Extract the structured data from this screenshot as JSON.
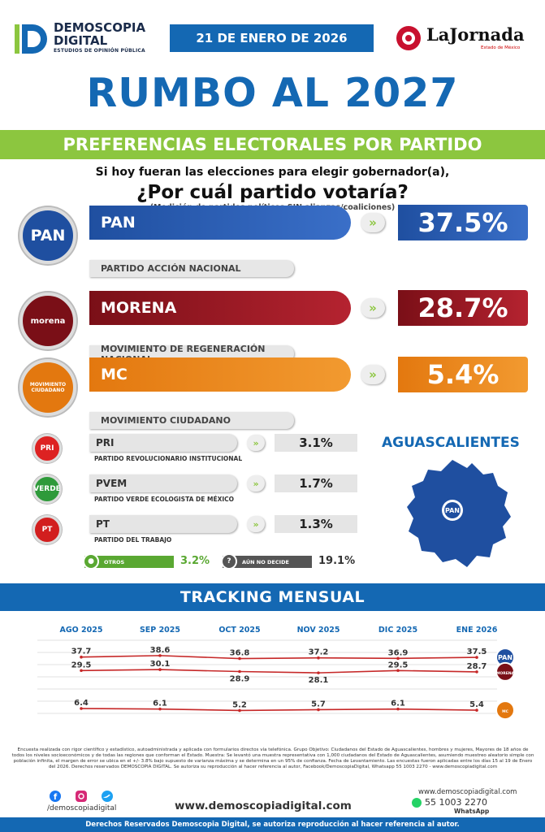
{
  "header": {
    "logo_line1": "DEMOSCOPIA",
    "logo_line2": "DIGITAL",
    "logo_sub": "ESTUDIOS DE OPINIÓN PÚBLICA",
    "date": "21 DE ENERO DE 2026",
    "partner": "LaJornada",
    "partner_sub": "Estado de México"
  },
  "title": "RUMBO AL 2027",
  "subtitle": "PREFERENCIAS ELECTORALES POR PARTIDO",
  "question": {
    "line1": "Si hoy fueran las elecciones para elegir gobernador(a),",
    "line2": "¿Por cuál partido votaría?",
    "note": "(Medición de partidos políticos SIN alianzas/coaliciones)"
  },
  "main_parties": [
    {
      "code": "PAN",
      "name": "PARTIDO ACCIÓN NACIONAL",
      "pct": "37.5%",
      "logo_text": "PAN",
      "color": "#1f4fa0",
      "color2": "#3a6fc8"
    },
    {
      "code": "MORENA",
      "name": "MOVIMIENTO DE REGENERACIÓN NACIONAL",
      "pct": "28.7%",
      "logo_text": "morena",
      "color": "#7a0f17",
      "color2": "#b52330"
    },
    {
      "code": "MC",
      "name": "MOVIMIENTO CIUDADANO",
      "pct": "5.4%",
      "logo_text": "MOVIMIENTO CIUDADANO",
      "color": "#e3780f",
      "color2": "#f29a30"
    }
  ],
  "minor_parties": [
    {
      "code": "PRI",
      "name": "PARTIDO REVOLUCIONARIO INSTITUCIONAL",
      "pct": "3.1%",
      "logo_text": "PRI",
      "color": "#d22"
    },
    {
      "code": "PVEM",
      "name": "PARTIDO VERDE ECOLOGISTA DE MÉXICO",
      "pct": "1.7%",
      "logo_text": "VERDE",
      "color": "#2e9a3a"
    },
    {
      "code": "PT",
      "name": "PARTIDO DEL TRABAJO",
      "pct": "1.3%",
      "logo_text": "PT",
      "color": "#d21e1e"
    }
  ],
  "others": {
    "label": "OTROS",
    "value": "3.2%",
    "color": "#5aa832"
  },
  "undecided": {
    "label": "AÚN NO DECIDE",
    "value": "19.1%",
    "color": "#555"
  },
  "state": "AGUASCALIENTES",
  "state_badge": "PAN",
  "tracking_title": "TRACKING MENSUAL",
  "chart_data": {
    "type": "line",
    "title": "TRACKING MENSUAL",
    "categories": [
      "AGO 2025",
      "SEP 2025",
      "OCT 2025",
      "NOV 2025",
      "DIC 2025",
      "ENE 2026"
    ],
    "series": [
      {
        "name": "PAN",
        "values": [
          37.7,
          38.6,
          36.8,
          37.2,
          36.9,
          37.5
        ],
        "color": "#c62828"
      },
      {
        "name": "MORENA",
        "values": [
          29.5,
          30.1,
          28.9,
          28.1,
          29.5,
          28.7
        ],
        "color": "#c62828"
      },
      {
        "name": "MC",
        "values": [
          6.4,
          6.1,
          5.2,
          5.7,
          6.1,
          5.4
        ],
        "color": "#c62828"
      }
    ],
    "ylim": [
      0,
      42
    ],
    "grid": true,
    "legend": "right"
  },
  "footer": {
    "methodology": "Encuesta realizada con rigor científico y estadístico, autoadministrada y aplicada con formularios directos vía telefónica. Grupo Objetivo: Ciudadanos del Estado de Aguascalientes, hombres y mujeres, Mayores de 18 años de todos los niveles socioeconómicos y de todas las regiones que conforman el Estado. Muestra: Se levantó una muestra representativa con 1,000 ciudadanos del Estado de Aguascalientes, asumiendo muestreo aleatorio simple con población infinita, el margen de error se ubica en el +/- 3.8% bajo supuesto de varianza máxima y se determina en un 95% de confianza. Fecha de Levantamiento. Las encuestas fueron aplicadas entre los días 15 al 19 de Enero del 2026. Derechos reservados DEMOSCOPIA DIGITAL. Se autoriza su reproducción al hacer referencia al autor, Facebook/DemoscopiaDigital, Whatsapp 55 1003 2270 - www.demoscopiadigital.com",
    "handle": "/demoscopiadigital",
    "site": "www.demoscopiadigital.com",
    "site_small": "www.demoscopiadigital.com",
    "phone": "55 1003 2270",
    "whatsapp": "WhatsApp",
    "rights": "Derechos Reservados Demoscopia Digital, se autoriza reproducción al hacer referencia al autor."
  }
}
